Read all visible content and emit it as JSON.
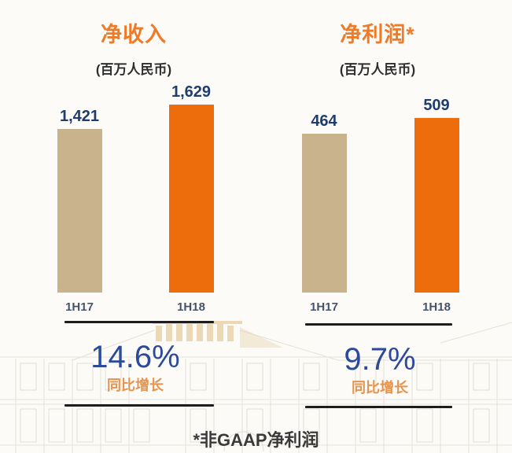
{
  "page": {
    "background_color": "#fcfbf8",
    "footnote": "*非GAAP净利润"
  },
  "colors": {
    "title_orange": "#ee7b28",
    "bar_tan": "#c9b38c",
    "bar_orange": "#ed6d0c",
    "value_navy": "#1e3d6b",
    "category_gray": "#44546a",
    "growth_blue": "#2b4a9b",
    "growth_caption_orange": "#e5944f",
    "rule_black": "#1d1d1d",
    "footnote_dark": "#3a3a3a"
  },
  "chart_data": [
    {
      "type": "bar",
      "title": "净收入",
      "unit_label": "(百万人民币)",
      "categories": [
        "1H17",
        "1H18"
      ],
      "values": [
        1421,
        1629
      ],
      "value_labels": [
        "1,421",
        "1,629"
      ],
      "series_colors": [
        "#c9b38c",
        "#ed6d0c"
      ],
      "growth_pct": "14.6%",
      "growth_caption": "同比增长",
      "ylim": [
        0,
        1700
      ],
      "grid": false,
      "legend": "none"
    },
    {
      "type": "bar",
      "title": "净利润*",
      "unit_label": "(百万人民币)",
      "categories": [
        "1H17",
        "1H18"
      ],
      "values": [
        464,
        509
      ],
      "value_labels": [
        "464",
        "509"
      ],
      "series_colors": [
        "#c9b38c",
        "#ed6d0c"
      ],
      "growth_pct": "9.7%",
      "growth_caption": "同比增长",
      "ylim": [
        0,
        530
      ],
      "grid": false,
      "legend": "none"
    }
  ]
}
